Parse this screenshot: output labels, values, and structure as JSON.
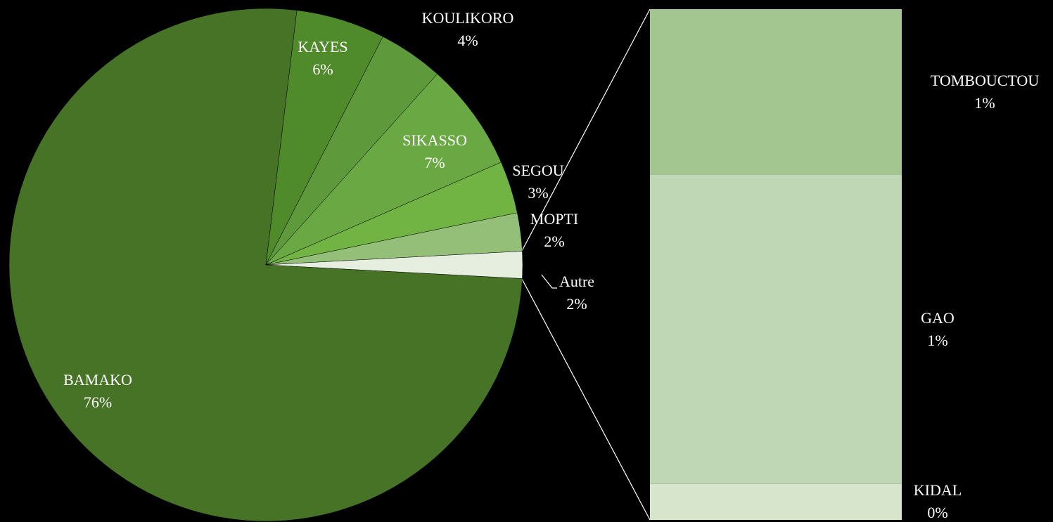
{
  "chart_data": {
    "type": "pie",
    "categories": [
      "BAMAKO",
      "KAYES",
      "KOULIKORO",
      "SIKASSO",
      "SEGOU",
      "MOPTI",
      "Autre"
    ],
    "values": [
      76.0,
      5.6,
      4.1,
      6.8,
      3.3,
      2.4,
      1.7
    ],
    "value_labels": [
      "76%",
      "6%",
      "4%",
      "7%",
      "3%",
      "2%",
      "2%"
    ],
    "colors": [
      "#467325",
      "#4f8a2b",
      "#5e9a3b",
      "#6aa843",
      "#72b443",
      "#93bf78",
      "#e6efdf"
    ],
    "secondary": {
      "type": "bar",
      "categories": [
        "TOMBOUCTOU",
        "GAO",
        "KIDAL"
      ],
      "values": [
        0.55,
        1.03,
        0.12
      ],
      "value_labels": [
        "1%",
        "1%",
        "0%"
      ],
      "colors": [
        "#a3c691",
        "#c0d7b5",
        "#d6e5cc"
      ]
    }
  }
}
